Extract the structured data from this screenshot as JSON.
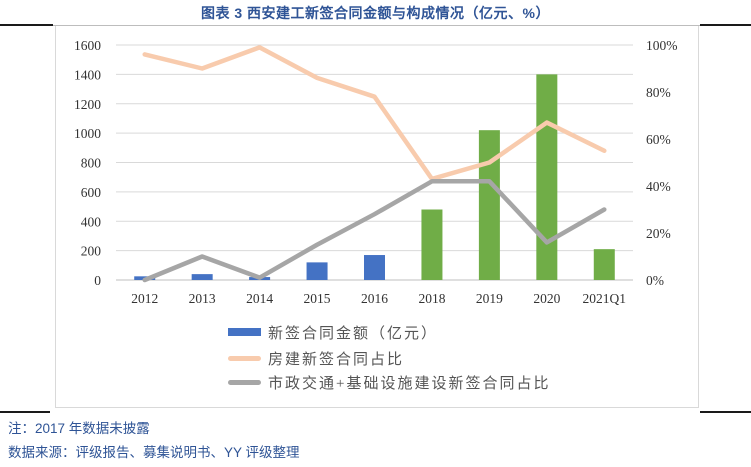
{
  "title": "图表 3 西安建工新签合同金额与构成情况（亿元、%）",
  "notes": {
    "note1": "注：2017 年数据未披露",
    "note2": "数据来源：评级报告、募集说明书、YY 评级整理"
  },
  "colors": {
    "title_blue": "#2F5496",
    "bar_blue": "#4472C4",
    "bar_green": "#70AD47",
    "line_orange": "#F8CBAD",
    "line_gray": "#A6A6A6",
    "gridline": "#D9D9D9",
    "axis_line": "#BFBFBF",
    "axis_text": "#333333"
  },
  "chart_data": {
    "type": "bar+line combo",
    "categories": [
      "2012",
      "2013",
      "2014",
      "2015",
      "2016",
      "2018",
      "2019",
      "2020",
      "2021Q1"
    ],
    "series": [
      {
        "name": "新签合同金额（亿元）",
        "type": "bar",
        "axis": "left",
        "values": [
          25,
          40,
          20,
          120,
          170,
          480,
          1020,
          1400,
          210
        ],
        "point_colors": [
          "#4472C4",
          "#4472C4",
          "#4472C4",
          "#4472C4",
          "#4472C4",
          "#70AD47",
          "#70AD47",
          "#70AD47",
          "#70AD47"
        ]
      },
      {
        "name": "房建新签合同占比",
        "type": "line",
        "axis": "right",
        "color": "#F8CBAD",
        "values": [
          96,
          90,
          99,
          86,
          78,
          43,
          50,
          67,
          55
        ]
      },
      {
        "name": "市政交通+基础设施建设新签合同占比",
        "type": "line",
        "axis": "right",
        "color": "#A6A6A6",
        "values": [
          0,
          10,
          1,
          15,
          28,
          42,
          42,
          16,
          30
        ]
      }
    ],
    "left_axis": {
      "min": 0,
      "max": 1600,
      "step": 200,
      "ticks": [
        "0",
        "200",
        "400",
        "600",
        "800",
        "1000",
        "1200",
        "1400",
        "1600"
      ]
    },
    "right_axis": {
      "min": 0,
      "max": 100,
      "step": 20,
      "ticks": [
        "0%",
        "20%",
        "40%",
        "60%",
        "80%",
        "100%"
      ]
    },
    "grid": true,
    "legend_position": "bottom-left-inside"
  },
  "legend": {
    "items": [
      {
        "swatch": "bar",
        "color": "#4472C4",
        "label": "新签合同金额（亿元）"
      },
      {
        "swatch": "line",
        "color": "#F8CBAD",
        "label": "房建新签合同占比"
      },
      {
        "swatch": "line",
        "color": "#A6A6A6",
        "label": "市政交通+基础设施建设新签合同占比"
      }
    ]
  }
}
